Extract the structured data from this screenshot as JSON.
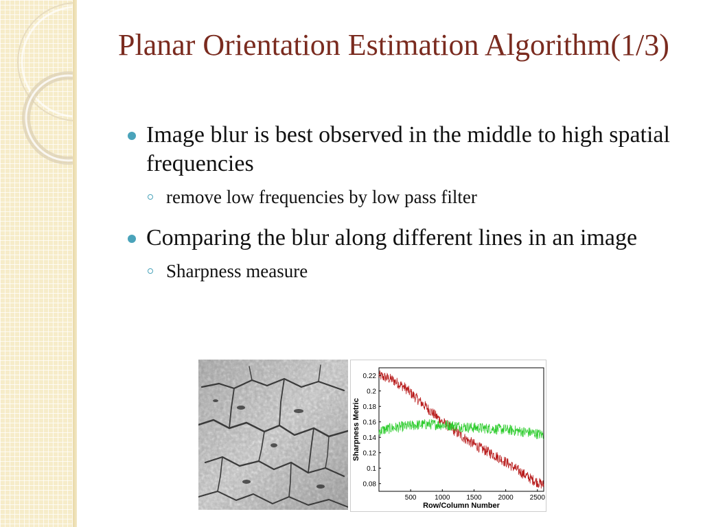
{
  "slide": {
    "title": "Planar Orientation Estimation Algorithm(1/3)",
    "bullets": [
      {
        "text": "Image blur is best observed in the middle to high spatial frequencies",
        "sub": [
          "remove low frequencies by low pass filter"
        ]
      },
      {
        "text": "Comparing the blur along different lines in an image",
        "sub": [
          "Sharpness measure"
        ]
      }
    ]
  },
  "colors": {
    "title": "#7a2b1f",
    "bullet": "#4aa3ba",
    "series_decreasing": "#b81c1c",
    "series_flat": "#2ecc2e",
    "sidebar": "#f6ecc9"
  },
  "chart_data": {
    "type": "line",
    "ylabel": "Sharpness Metric",
    "xlabel": "Row/Column Number",
    "xlim": [
      0,
      2600
    ],
    "ylim": [
      0.07,
      0.23
    ],
    "xticks": [
      500,
      1000,
      1500,
      2000,
      2500
    ],
    "yticks": [
      0.08,
      0.1,
      0.12,
      0.14,
      0.16,
      0.18,
      0.2,
      0.22
    ],
    "ytick_labels": [
      "0.08",
      "0.1",
      "0.12",
      "0.14",
      "0.16",
      "0.18",
      "0.2",
      "0.22"
    ],
    "grid": false,
    "series": [
      {
        "color": "#b81c1c",
        "x": [
          0,
          200,
          400,
          600,
          800,
          1000,
          1200,
          1400,
          1600,
          1800,
          2000,
          2200,
          2400,
          2600
        ],
        "y": [
          0.22,
          0.215,
          0.205,
          0.19,
          0.175,
          0.16,
          0.148,
          0.136,
          0.126,
          0.118,
          0.108,
          0.097,
          0.086,
          0.078
        ]
      },
      {
        "color": "#2ecc2e",
        "x": [
          0,
          200,
          400,
          600,
          800,
          1000,
          1200,
          1400,
          1600,
          1800,
          2000,
          2200,
          2400,
          2600
        ],
        "y": [
          0.148,
          0.152,
          0.154,
          0.156,
          0.157,
          0.156,
          0.155,
          0.153,
          0.152,
          0.151,
          0.15,
          0.148,
          0.146,
          0.143
        ]
      }
    ]
  }
}
